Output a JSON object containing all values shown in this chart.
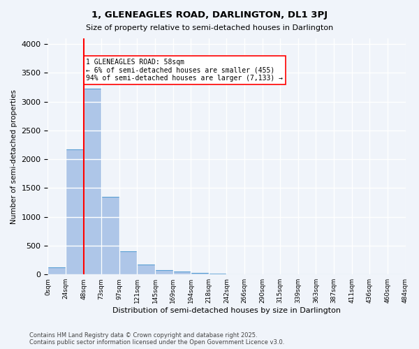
{
  "title1": "1, GLENEAGLES ROAD, DARLINGTON, DL1 3PJ",
  "title2": "Size of property relative to semi-detached houses in Darlington",
  "xlabel": "Distribution of semi-detached houses by size in Darlington",
  "ylabel": "Number of semi-detached properties",
  "bar_color": "#aec6e8",
  "bar_edge_color": "#5a9fd4",
  "vline_color": "red",
  "vline_x": 2,
  "annotation_text": "1 GLENEAGLES ROAD: 58sqm\n← 6% of semi-detached houses are smaller (455)\n94% of semi-detached houses are larger (7,133) →",
  "annotation_box_color": "white",
  "annotation_box_edge": "red",
  "bin_labels": [
    "0sqm",
    "24sqm",
    "48sqm",
    "73sqm",
    "97sqm",
    "121sqm",
    "145sqm",
    "169sqm",
    "194sqm",
    "218sqm",
    "242sqm",
    "266sqm",
    "290sqm",
    "315sqm",
    "339sqm",
    "363sqm",
    "387sqm",
    "411sqm",
    "436sqm",
    "460sqm",
    "484sqm"
  ],
  "bar_heights": [
    120,
    2175,
    3225,
    1350,
    400,
    175,
    80,
    55,
    30,
    10,
    5,
    3,
    2,
    1,
    0,
    0,
    0,
    0,
    0,
    0
  ],
  "ylim": [
    0,
    4100
  ],
  "yticks": [
    0,
    500,
    1000,
    1500,
    2000,
    2500,
    3000,
    3500,
    4000
  ],
  "footer": "Contains HM Land Registry data © Crown copyright and database right 2025.\nContains public sector information licensed under the Open Government Licence v3.0.",
  "background_color": "#f0f4fa",
  "grid_color": "white"
}
